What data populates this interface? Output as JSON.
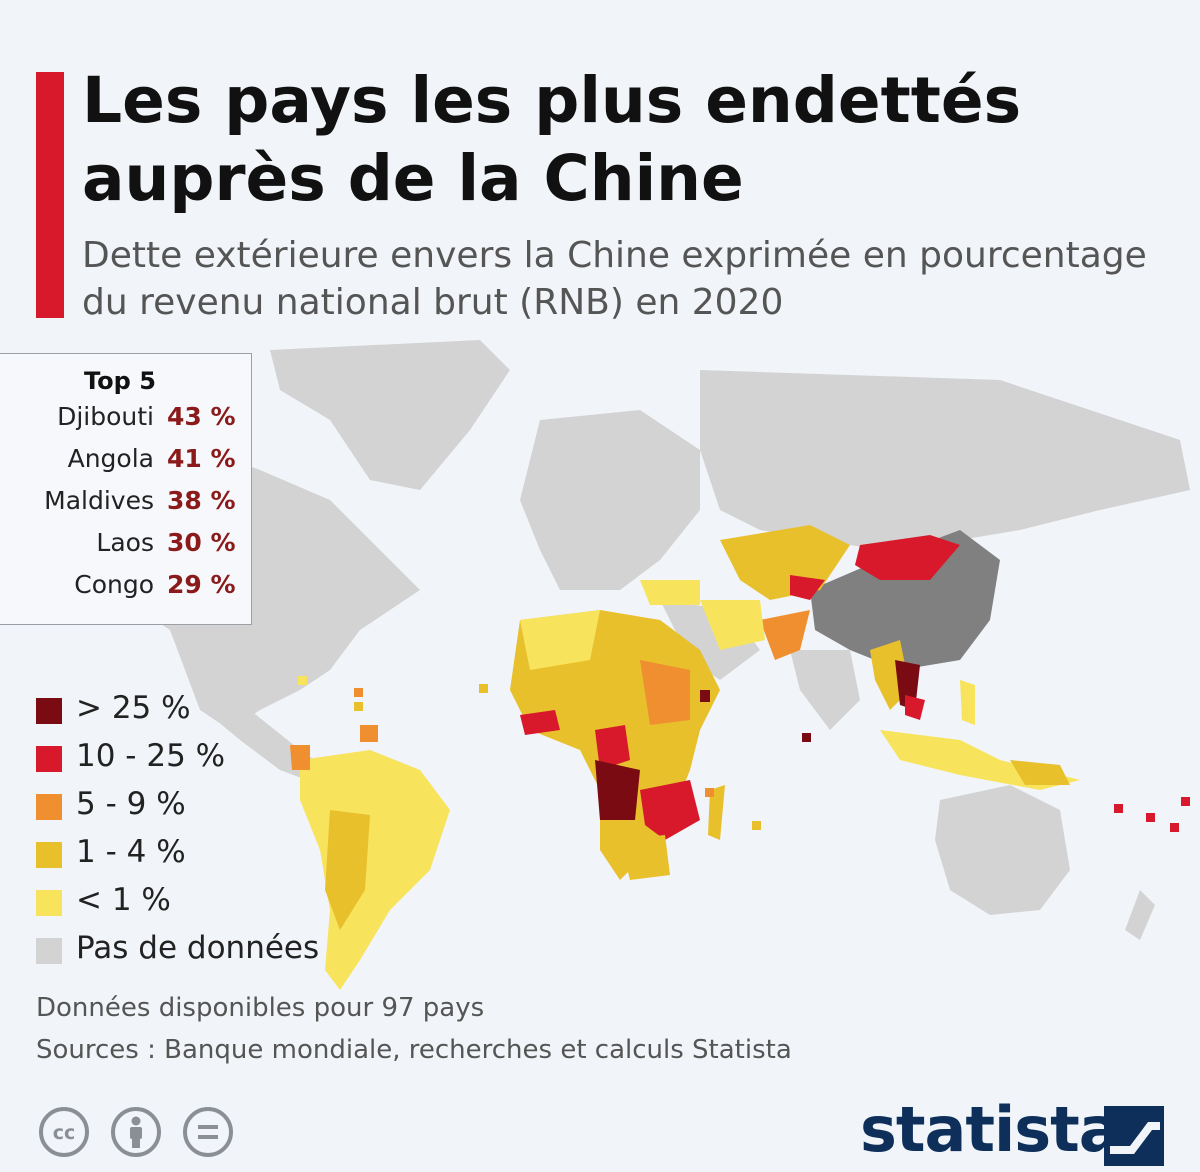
{
  "header": {
    "title": "Les pays les plus endettés auprès de la Chine",
    "subtitle": "Dette extérieure envers la Chine exprimée en pourcentage du revenu national brut (RNB) en 2020"
  },
  "top5": {
    "title": "Top 5",
    "items": [
      {
        "name": "Djibouti",
        "value": "43 %"
      },
      {
        "name": "Angola",
        "value": "41 %"
      },
      {
        "name": "Maldives",
        "value": "38 %"
      },
      {
        "name": "Laos",
        "value": "30 %"
      },
      {
        "name": "Congo",
        "value": "29 %"
      }
    ]
  },
  "legend": [
    {
      "label": "> 25 %",
      "color": "#7a0b12"
    },
    {
      "label": "10 - 25 %",
      "color": "#d7192b"
    },
    {
      "label": "5 - 9 %",
      "color": "#ef8f2f"
    },
    {
      "label": "1 - 4 %",
      "color": "#e8c02c"
    },
    {
      "label": "< 1 %",
      "color": "#f8e35c"
    },
    {
      "label": "Pas de données",
      "color": "#d3d3d3"
    }
  ],
  "map_colors": {
    "china": "#808080",
    "land": "#d3d3d3"
  },
  "footer": {
    "note": "Données disponibles pour 97 pays",
    "sources": "Sources : Banque mondiale, recherches et calculs Statista",
    "brand": "statista"
  },
  "icons": [
    "cc-icon",
    "attribution-icon",
    "no-derivatives-icon",
    "statista-logo-icon"
  ]
}
